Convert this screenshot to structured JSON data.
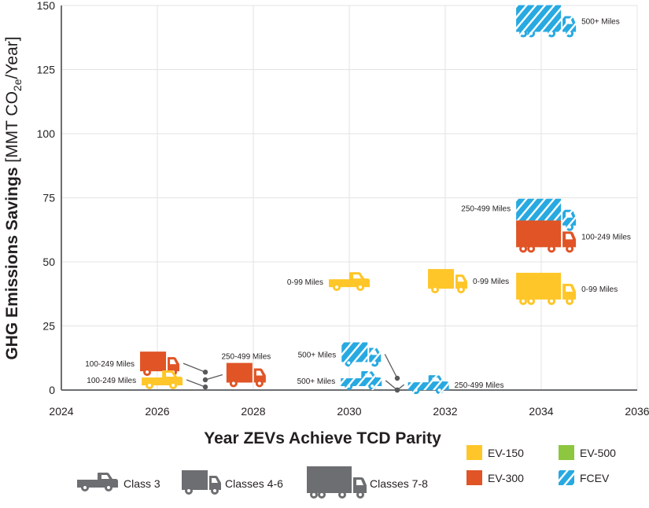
{
  "chart_data": {
    "type": "scatter",
    "title": "",
    "xlabel": "Year ZEVs Achieve TCD Parity",
    "ylabel": {
      "bold": "GHG Emissions Savings",
      "unit_prefix": "[MMT CO",
      "unit_sub": "2e",
      "unit_suffix": "/Year]"
    },
    "xlim": [
      2024,
      2036
    ],
    "ylim": [
      0,
      150
    ],
    "xticks": [
      "2024",
      "2026",
      "2028",
      "2030",
      "2032",
      "2034",
      "2036"
    ],
    "yticks": [
      "0",
      "25",
      "50",
      "75",
      "100",
      "125",
      "150"
    ],
    "grid": true,
    "points": [
      {
        "class": "Classes 4-6",
        "fuel": "EV-300",
        "label": "100-249 Miles",
        "year": 2027.0,
        "value": 7
      },
      {
        "class": "Class 3",
        "fuel": "EV-150",
        "label": "100-249 Miles",
        "year": 2027.0,
        "value": 1.2
      },
      {
        "class": "Classes 4-6",
        "fuel": "EV-300",
        "label": "250-499 Miles",
        "year": 2027.0,
        "value": 4
      },
      {
        "class": "Class 3",
        "fuel": "EV-150",
        "label": "0-99 Miles",
        "year": 2030.0,
        "value": 42
      },
      {
        "class": "Classes 4-6",
        "fuel": "EV-150",
        "label": "0-99 Miles",
        "year": 2032.0,
        "value": 43
      },
      {
        "class": "Classes 7-8",
        "fuel": "FCEV",
        "label": "250-499 Miles",
        "year": 2034.1,
        "value": 68
      },
      {
        "class": "Classes 7-8",
        "fuel": "EV-300",
        "label": "100-249 Miles",
        "year": 2034.1,
        "value": 60
      },
      {
        "class": "Classes 7-8",
        "fuel": "EV-150",
        "label": "0-99 Miles",
        "year": 2034.1,
        "value": 40
      },
      {
        "class": "Classes 7-8",
        "fuel": "FCEV",
        "label": "500+ Miles",
        "year": 2034.1,
        "value": 144
      },
      {
        "class": "Classes 4-6",
        "fuel": "FCEV",
        "label": "500+ Miles",
        "year": 2031.0,
        "value": 4.6
      },
      {
        "class": "Class 3",
        "fuel": "FCEV",
        "label": "500+ Miles",
        "year": 2031.0,
        "value": 0
      },
      {
        "class": "Class 3",
        "fuel": "FCEV",
        "label": "250-499 Miles",
        "year": 2031.0,
        "value": 0
      }
    ]
  },
  "legend": {
    "classes": [
      {
        "label": "Class 3",
        "icon": "pickup-truck-icon"
      },
      {
        "label": "Classes 4-6",
        "icon": "box-truck-icon"
      },
      {
        "label": "Classes 7-8",
        "icon": "semi-truck-icon"
      }
    ],
    "fuels": [
      {
        "label": "EV-150",
        "color": "#FFC629"
      },
      {
        "label": "EV-300",
        "color": "#E05426"
      },
      {
        "label": "EV-500",
        "color": "#8DC63F"
      },
      {
        "label": "FCEV",
        "color": "#27A9E1",
        "pattern": "hatched"
      }
    ]
  },
  "colors": {
    "grid": "#e3e3e3",
    "axis": "#6d6e71",
    "icon_grey": "#6d6e71",
    "leader": "#58595b"
  }
}
